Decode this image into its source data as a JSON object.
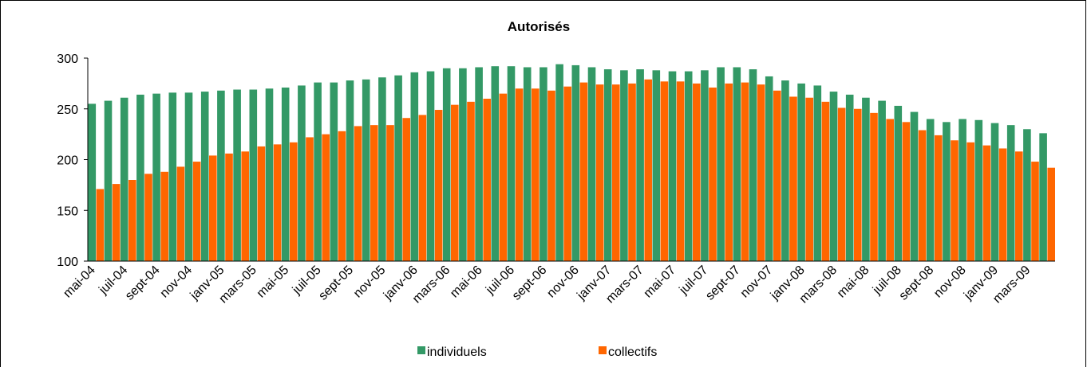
{
  "chart_data": {
    "type": "bar",
    "title": "Autorisés",
    "categories": [
      "mai-04",
      null,
      "juil-04",
      null,
      "sept-04",
      null,
      "nov-04",
      null,
      "janv-05",
      null,
      "mars-05",
      null,
      "mai-05",
      null,
      "juil-05",
      null,
      "sept-05",
      null,
      "nov-05",
      null,
      "janv-06",
      null,
      "mars-06",
      null,
      "mai-06",
      null,
      "juil-06",
      null,
      "sept-06",
      null,
      "nov-06",
      null,
      "janv-07",
      null,
      "mars-07",
      null,
      "mai-07",
      null,
      "juil-07",
      null,
      "sept-07",
      null,
      "nov-07",
      null,
      "janv-08",
      null,
      "mars-08",
      null,
      "mai-08",
      null,
      "juil-08",
      null,
      "sept-08",
      null,
      "nov-08",
      null,
      "janv-09",
      null,
      "mars-09",
      null
    ],
    "series": [
      {
        "name": "individuels",
        "color": "#339966",
        "values": [
          255,
          258,
          261,
          264,
          265,
          266,
          266,
          267,
          268,
          269,
          269,
          270,
          271,
          273,
          276,
          276,
          278,
          279,
          281,
          283,
          286,
          287,
          290,
          290,
          291,
          292,
          292,
          291,
          291,
          294,
          293,
          291,
          289,
          288,
          289,
          288,
          287,
          287,
          288,
          291,
          291,
          289,
          282,
          278,
          275,
          273,
          267,
          264,
          261,
          258,
          253,
          247,
          240,
          237,
          240,
          239,
          236,
          234,
          230,
          226
        ]
      },
      {
        "name": "collectifs",
        "color": "#ff6600",
        "values": [
          171,
          176,
          180,
          186,
          188,
          193,
          198,
          204,
          206,
          208,
          213,
          215,
          217,
          222,
          225,
          228,
          233,
          234,
          234,
          241,
          244,
          249,
          254,
          257,
          260,
          265,
          270,
          270,
          268,
          272,
          276,
          274,
          274,
          275,
          279,
          277,
          277,
          275,
          271,
          275,
          276,
          274,
          268,
          262,
          261,
          257,
          251,
          250,
          246,
          240,
          237,
          229,
          224,
          219,
          217,
          214,
          211,
          208,
          198,
          192
        ]
      }
    ],
    "ylim": [
      100,
      300
    ],
    "yticks": [
      100,
      150,
      200,
      250,
      300
    ],
    "grid": false,
    "legend": "bottom"
  }
}
